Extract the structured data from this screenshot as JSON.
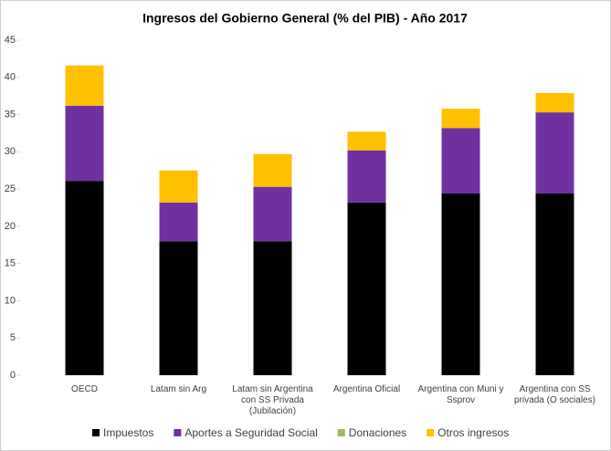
{
  "chart_data": {
    "type": "stacked_bar",
    "title": "Ingresos del Gobierno General (% del PIB) - Año 2017",
    "categories": [
      "OECD",
      "Latam sin Arg",
      "Latam sin Argentina con SS Privada (Jubilación)",
      "Argentina Oficial",
      "Argentina con Muni y Ssprov",
      "Argentina con SS privada (O sociales)"
    ],
    "series": [
      {
        "name": "Impuestos",
        "color": "#000000",
        "values": [
          26.1,
          18.0,
          18.0,
          23.2,
          24.4,
          24.4
        ]
      },
      {
        "name": "Aportes a Seguridad Social",
        "color": "#7030a0",
        "values": [
          10.1,
          5.2,
          7.3,
          7.0,
          8.8,
          10.9
        ]
      },
      {
        "name": "Donaciones",
        "color": "#9bbb59",
        "values": [
          0,
          0,
          0,
          0,
          0,
          0
        ]
      },
      {
        "name": "Otros ingresos",
        "color": "#ffc000",
        "values": [
          5.4,
          4.3,
          4.4,
          2.5,
          2.6,
          2.6
        ]
      }
    ],
    "ylim": [
      0,
      45
    ],
    "yticks": [
      0,
      5,
      10,
      15,
      20,
      25,
      30,
      35,
      40,
      45
    ],
    "grid": false,
    "legend": "bottom"
  }
}
